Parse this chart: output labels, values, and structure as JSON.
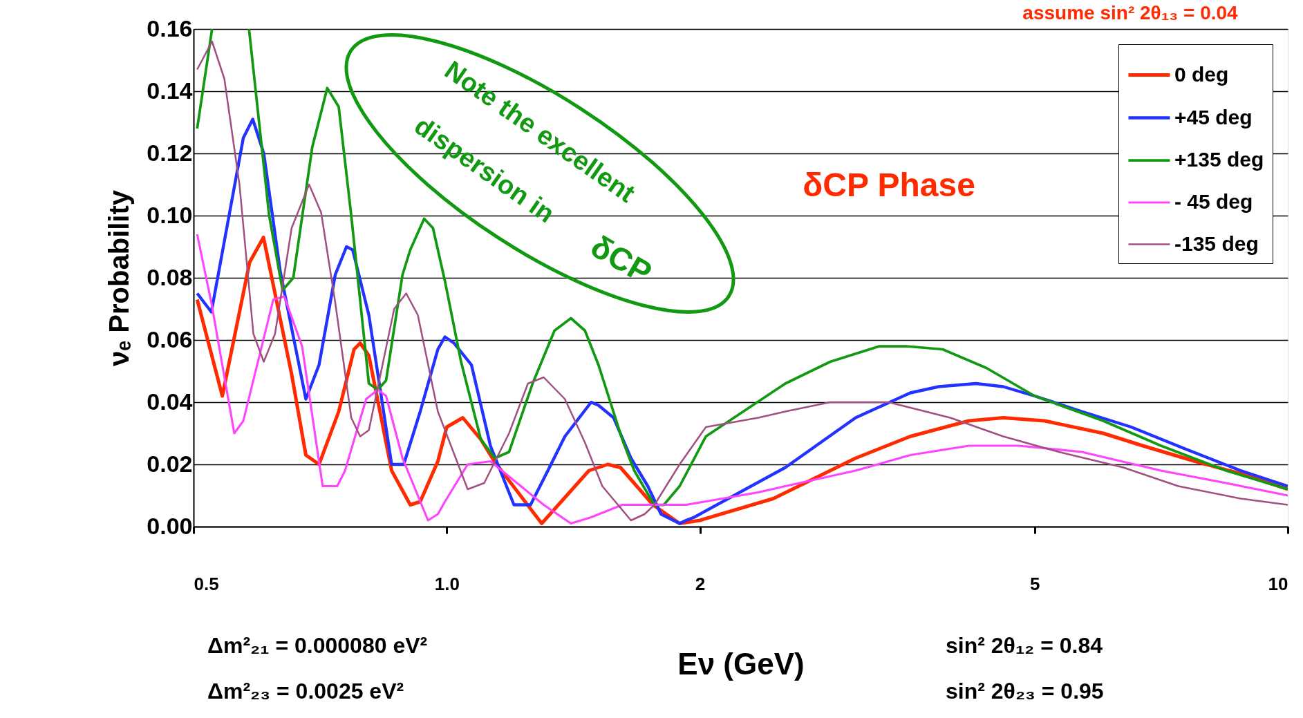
{
  "chart_data": {
    "type": "line",
    "xlabel": "Eν (GeV)",
    "ylabel": "νₑ Probability",
    "xlim": [
      0.5,
      10
    ],
    "xticks": [
      0.5,
      {
        "value": 1,
        "label": "1.0"
      },
      2,
      5,
      10
    ],
    "ylim": [
      0,
      0.16
    ],
    "yticks": [
      {
        "value": 0,
        "label": "0.00"
      },
      {
        "value": 0.02,
        "label": "0.02"
      },
      {
        "value": 0.04,
        "label": "0.04"
      },
      {
        "value": 0.06,
        "label": "0.06"
      },
      {
        "value": 0.08,
        "label": "0.08"
      },
      {
        "value": 0.1,
        "label": "0.10"
      },
      {
        "value": 0.12,
        "label": "0.12"
      },
      {
        "value": 0.14,
        "label": "0.14"
      },
      {
        "value": 0.16,
        "label": "0.16"
      }
    ],
    "grid": "y",
    "legend": "top right",
    "log": "x",
    "annotations": [
      "assume sin² 2θ₁₃ = 0.04",
      "δCP Phase",
      "Note the excellent dispersion in δCP",
      "Δm²₂₁ = 0.000080 eV²",
      "Δm²₂₃ = 0.0025 eV²",
      "sin² 2θ₁₂ = 0.84",
      "sin² 2θ₂₃ = 0.95"
    ],
    "series": [
      {
        "name": "0 deg",
        "color": "#ff2a00",
        "x": [
          0.505,
          0.541,
          0.583,
          0.6055,
          0.654,
          0.68,
          0.705,
          0.744,
          0.776,
          0.789,
          0.808,
          0.86,
          0.905,
          0.93,
          0.976,
          1.0,
          1.045,
          1.098,
          1.139,
          1.297,
          1.476,
          1.554,
          1.609,
          1.759,
          1.892,
          2.0,
          2.445,
          3.063,
          3.558,
          4.176,
          4.588,
          5.138,
          6.033,
          6.722,
          7.755,
          8.788,
          10
        ],
        "values": [
          0.073,
          0.042,
          0.085,
          0.093,
          0.049,
          0.023,
          0.02,
          0.037,
          0.057,
          0.059,
          0.055,
          0.018,
          0.007,
          0.008,
          0.021,
          0.032,
          0.035,
          0.028,
          0.021,
          0.001,
          0.018,
          0.02,
          0.019,
          0.007,
          0.001,
          0.002,
          0.009,
          0.022,
          0.029,
          0.034,
          0.035,
          0.034,
          0.03,
          0.026,
          0.021,
          0.017,
          0.012
        ]
      },
      {
        "name": "+45 deg",
        "color": "#2233ff",
        "x": [
          0.505,
          0.525,
          0.573,
          0.588,
          0.606,
          0.634,
          0.68,
          0.705,
          0.737,
          0.76,
          0.773,
          0.808,
          0.86,
          0.889,
          0.93,
          0.976,
          0.995,
          1.02,
          1.07,
          1.127,
          1.202,
          1.258,
          1.319,
          1.382,
          1.485,
          1.515,
          1.579,
          1.656,
          1.734,
          1.798,
          1.892,
          1.926,
          1.969,
          2.527,
          3.063,
          3.558,
          3.846,
          4.258,
          4.588,
          5.0,
          5.689,
          6.515,
          7.548,
          8.788,
          10
        ],
        "values": [
          0.075,
          0.069,
          0.125,
          0.131,
          0.12,
          0.082,
          0.041,
          0.052,
          0.081,
          0.09,
          0.089,
          0.068,
          0.02,
          0.02,
          0.037,
          0.057,
          0.061,
          0.059,
          0.052,
          0.026,
          0.007,
          0.007,
          0.018,
          0.029,
          0.04,
          0.039,
          0.035,
          0.022,
          0.013,
          0.004,
          0.001,
          0.002,
          0.003,
          0.019,
          0.035,
          0.043,
          0.045,
          0.046,
          0.045,
          0.042,
          0.037,
          0.032,
          0.025,
          0.018,
          0.013
        ]
      },
      {
        "name": "+135 deg",
        "color": "#119911",
        "x": [
          0.505,
          0.526,
          0.55,
          0.582,
          0.615,
          0.638,
          0.657,
          0.692,
          0.721,
          0.744,
          0.77,
          0.808,
          0.828,
          0.847,
          0.886,
          0.905,
          0.94,
          0.963,
          0.995,
          1.04,
          1.098,
          1.141,
          1.186,
          1.265,
          1.343,
          1.405,
          1.46,
          1.515,
          1.617,
          1.671,
          1.765,
          1.812,
          1.892,
          2.033,
          2.527,
          2.857,
          3.269,
          3.516,
          3.887,
          4.382,
          5.0,
          6.033,
          7.066,
          8.444,
          10
        ],
        "values": [
          0.128,
          0.16,
          null,
          0.16,
          0.1,
          0.076,
          0.08,
          0.122,
          0.141,
          0.135,
          0.1,
          0.046,
          0.044,
          0.047,
          0.081,
          0.089,
          0.099,
          0.096,
          0.079,
          0.053,
          0.028,
          0.022,
          0.024,
          0.046,
          0.063,
          0.067,
          0.063,
          0.052,
          0.028,
          0.018,
          0.007,
          0.007,
          0.013,
          0.029,
          0.046,
          0.053,
          0.058,
          0.058,
          0.057,
          0.051,
          0.042,
          0.034,
          0.026,
          0.018,
          0.012
        ]
      },
      {
        "name": "- 45 deg",
        "color": "#ff44ff",
        "x": [
          0.505,
          0.525,
          0.559,
          0.573,
          0.622,
          0.641,
          0.673,
          0.712,
          0.741,
          0.757,
          0.802,
          0.828,
          0.847,
          0.886,
          0.95,
          0.976,
          0.995,
          1.059,
          1.127,
          1.225,
          1.304,
          1.405,
          1.485,
          1.617,
          1.892,
          1.926,
          2.346,
          2.527,
          3.063,
          3.558,
          4.176,
          4.794,
          5.689,
          7.066,
          8.444,
          10
        ],
        "values": [
          0.094,
          0.072,
          0.03,
          0.034,
          0.073,
          0.074,
          0.058,
          0.013,
          0.013,
          0.018,
          0.041,
          0.044,
          0.042,
          0.022,
          0.002,
          0.004,
          0.008,
          0.02,
          0.021,
          0.013,
          0.007,
          0.001,
          0.003,
          0.007,
          0.007,
          0.007,
          0.011,
          0.013,
          0.018,
          0.023,
          0.026,
          0.026,
          0.024,
          0.018,
          0.014,
          0.01
        ]
      },
      {
        "name": "-135 deg",
        "color": "#a05080",
        "x": [
          0.505,
          0.526,
          0.544,
          0.567,
          0.589,
          0.606,
          0.625,
          0.654,
          0.686,
          0.709,
          0.737,
          0.77,
          0.789,
          0.808,
          0.866,
          0.895,
          0.924,
          0.976,
          1.059,
          1.108,
          1.186,
          1.249,
          1.304,
          1.382,
          1.46,
          1.531,
          1.656,
          1.719,
          1.766,
          1.892,
          2.033,
          2.346,
          2.527,
          2.857,
          3.352,
          3.969,
          4.588,
          5.344,
          6.377,
          7.41,
          8.788,
          10
        ],
        "values": [
          0.147,
          0.156,
          0.144,
          0.11,
          0.062,
          0.053,
          0.062,
          0.096,
          0.11,
          0.101,
          0.072,
          0.035,
          0.029,
          0.031,
          0.07,
          0.075,
          0.068,
          0.037,
          0.012,
          0.014,
          0.03,
          0.046,
          0.048,
          0.041,
          0.027,
          0.013,
          0.002,
          0.004,
          0.007,
          0.02,
          0.032,
          0.035,
          0.037,
          0.04,
          0.04,
          0.035,
          0.029,
          0.024,
          0.019,
          0.013,
          0.009,
          0.007
        ]
      }
    ]
  }
}
